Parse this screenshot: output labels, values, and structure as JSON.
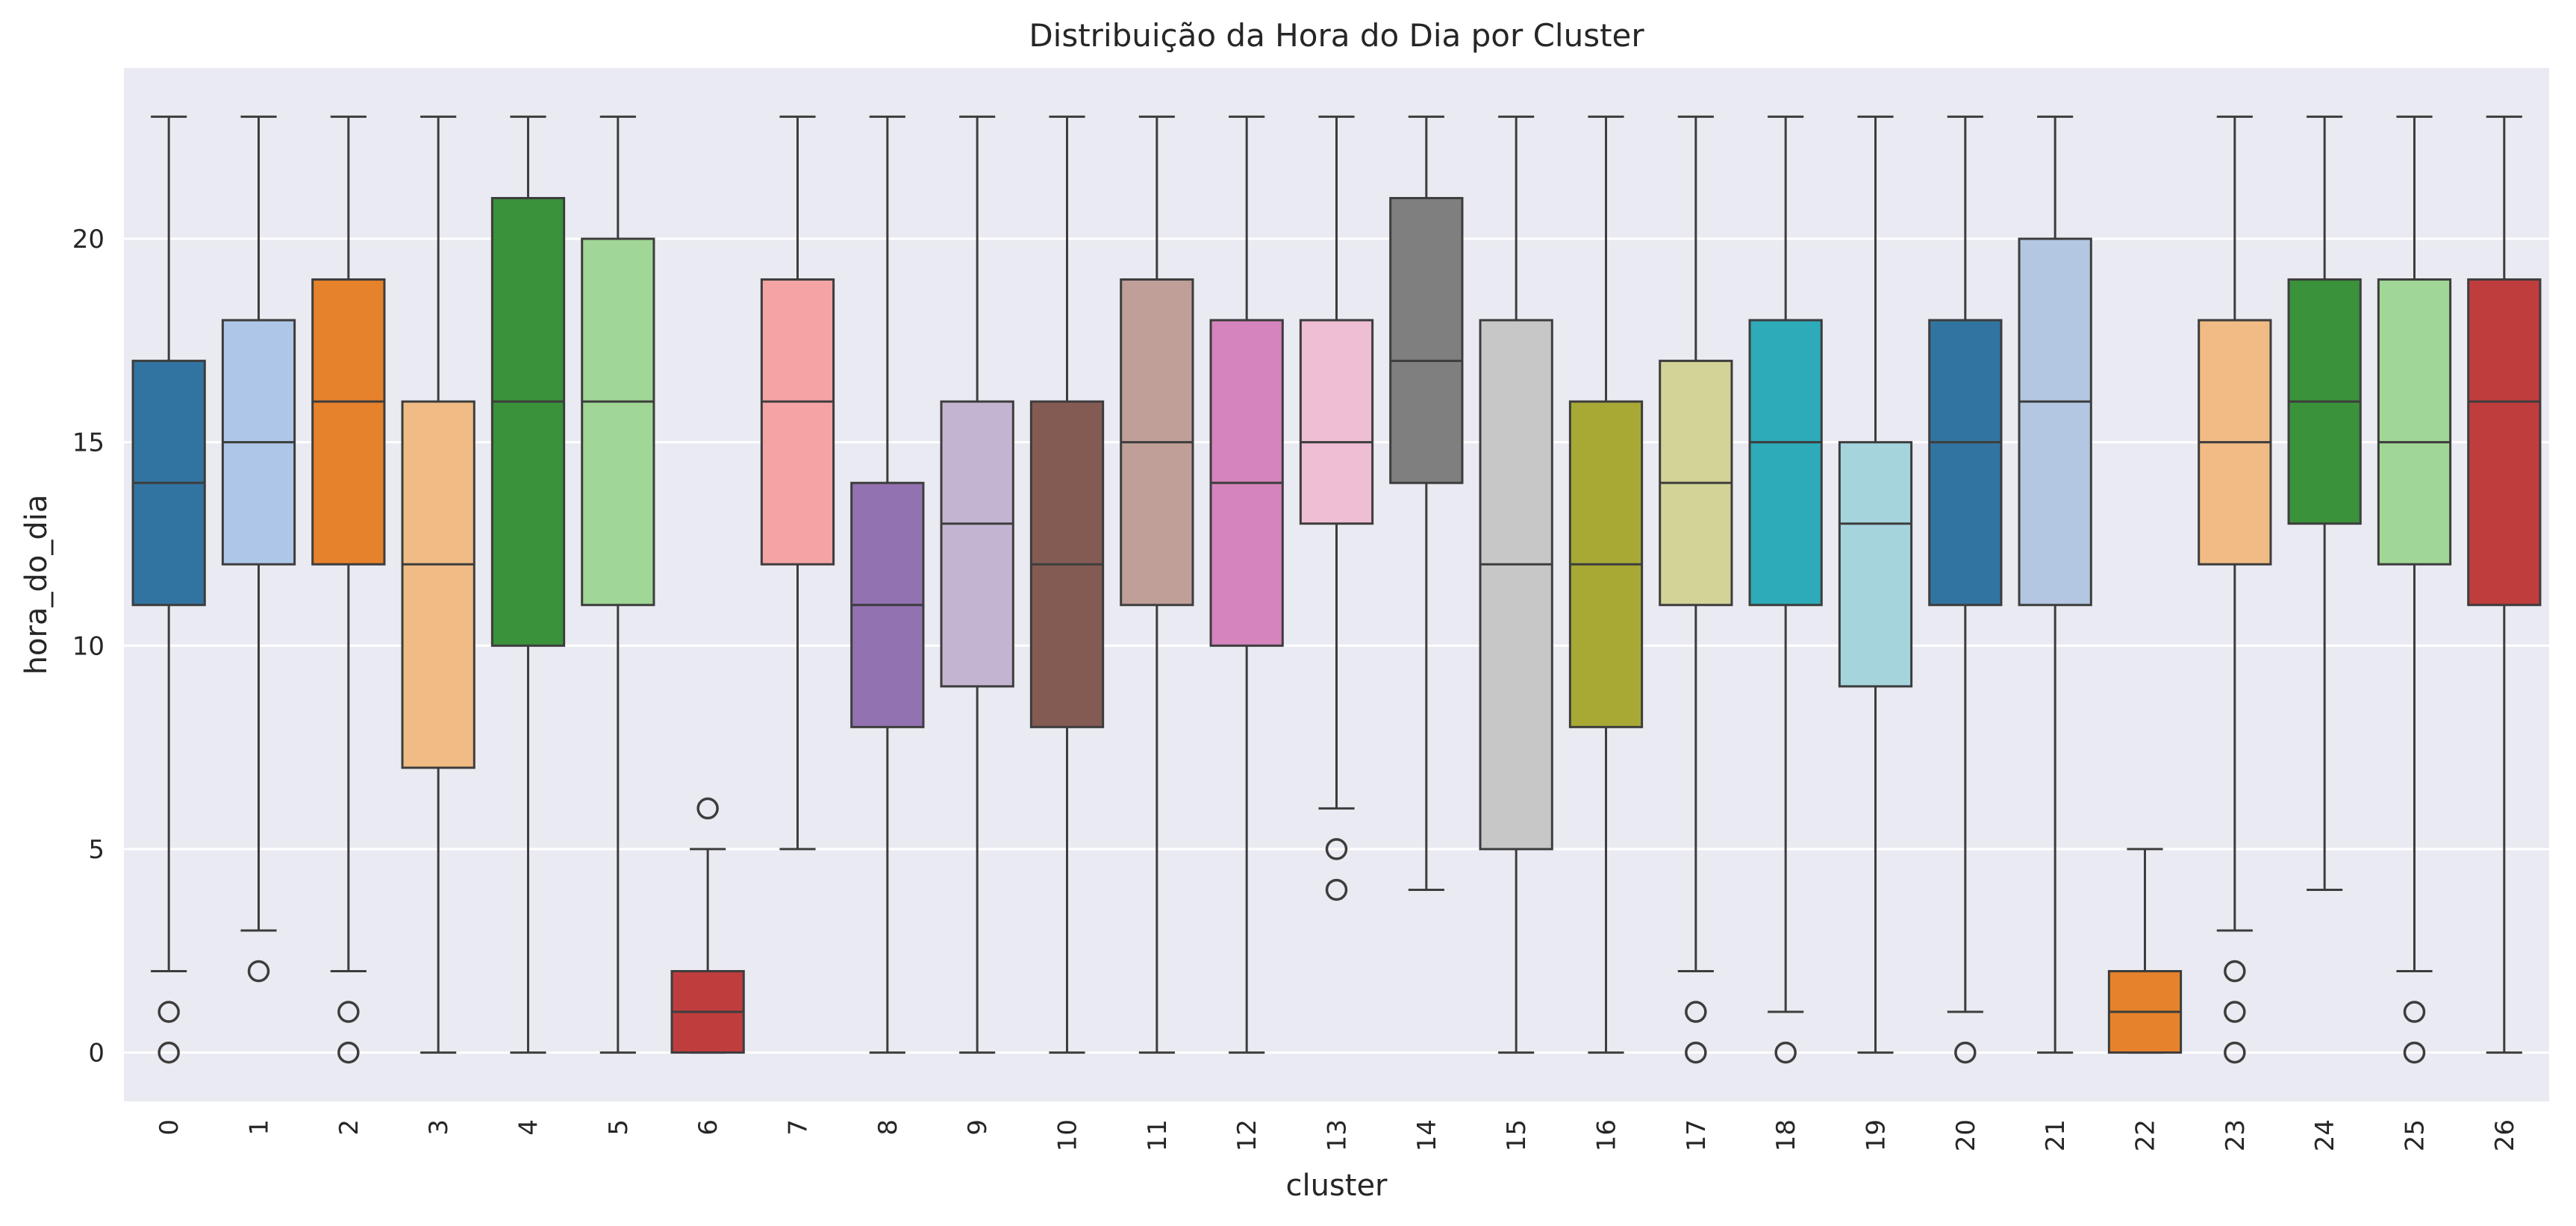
{
  "chart_data": {
    "type": "boxplot",
    "title": "Distribuição da Hora do Dia por Cluster",
    "xlabel": "cluster",
    "ylabel": "hora_do_dia",
    "ylim": [
      -1.2,
      24.2
    ],
    "yticks": [
      0,
      5,
      10,
      15,
      20
    ],
    "grid": true,
    "background_color": "#eaeaf2",
    "categories": [
      "0",
      "1",
      "2",
      "3",
      "4",
      "5",
      "6",
      "7",
      "8",
      "9",
      "10",
      "11",
      "12",
      "13",
      "14",
      "15",
      "16",
      "17",
      "18",
      "19",
      "20",
      "21",
      "22",
      "23",
      "24",
      "25",
      "26"
    ],
    "boxes": [
      {
        "cluster": "0",
        "color": "#3274a1",
        "whisker_low": 2,
        "q1": 11,
        "median": 14,
        "q3": 17,
        "whisker_high": 23,
        "outliers": [
          0,
          1
        ]
      },
      {
        "cluster": "1",
        "color": "#aec7e8",
        "whisker_low": 3,
        "q1": 12,
        "median": 15,
        "q3": 18,
        "whisker_high": 23,
        "outliers": [
          2
        ]
      },
      {
        "cluster": "2",
        "color": "#e6822b",
        "whisker_low": 2,
        "q1": 12,
        "median": 16,
        "q3": 19,
        "whisker_high": 23,
        "outliers": [
          0,
          1
        ]
      },
      {
        "cluster": "3",
        "color": "#f0bb85",
        "whisker_low": 0,
        "q1": 7,
        "median": 12,
        "q3": 16,
        "whisker_high": 23,
        "outliers": []
      },
      {
        "cluster": "4",
        "color": "#3a923a",
        "whisker_low": 0,
        "q1": 10,
        "median": 16,
        "q3": 21,
        "whisker_high": 23,
        "outliers": []
      },
      {
        "cluster": "5",
        "color": "#a0d696",
        "whisker_low": 0,
        "q1": 11,
        "median": 16,
        "q3": 20,
        "whisker_high": 23,
        "outliers": []
      },
      {
        "cluster": "6",
        "color": "#c03d3e",
        "whisker_low": 0,
        "q1": 0,
        "median": 1,
        "q3": 2,
        "whisker_high": 5,
        "outliers": [
          6
        ]
      },
      {
        "cluster": "7",
        "color": "#f4a4a4",
        "whisker_low": 5,
        "q1": 12,
        "median": 16,
        "q3": 19,
        "whisker_high": 23,
        "outliers": []
      },
      {
        "cluster": "8",
        "color": "#9372b2",
        "whisker_low": 0,
        "q1": 8,
        "median": 11,
        "q3": 14,
        "whisker_high": 23,
        "outliers": []
      },
      {
        "cluster": "9",
        "color": "#c3b5d2",
        "whisker_low": 0,
        "q1": 9,
        "median": 13,
        "q3": 16,
        "whisker_high": 23,
        "outliers": []
      },
      {
        "cluster": "10",
        "color": "#845b53",
        "whisker_low": 0,
        "q1": 8,
        "median": 12,
        "q3": 16,
        "whisker_high": 23,
        "outliers": []
      },
      {
        "cluster": "11",
        "color": "#bf9f98",
        "whisker_low": 0,
        "q1": 11,
        "median": 15,
        "q3": 19,
        "whisker_high": 23,
        "outliers": []
      },
      {
        "cluster": "12",
        "color": "#d684bd",
        "whisker_low": 0,
        "q1": 10,
        "median": 14,
        "q3": 18,
        "whisker_high": 23,
        "outliers": []
      },
      {
        "cluster": "13",
        "color": "#efbdd4",
        "whisker_low": 6,
        "q1": 13,
        "median": 15,
        "q3": 18,
        "whisker_high": 23,
        "outliers": [
          4,
          5
        ]
      },
      {
        "cluster": "14",
        "color": "#7f7f7f",
        "whisker_low": 4,
        "q1": 14,
        "median": 17,
        "q3": 21,
        "whisker_high": 23,
        "outliers": []
      },
      {
        "cluster": "15",
        "color": "#c7c7c7",
        "whisker_low": 0,
        "q1": 5,
        "median": 12,
        "q3": 18,
        "whisker_high": 23,
        "outliers": []
      },
      {
        "cluster": "16",
        "color": "#a8a935",
        "whisker_low": 0,
        "q1": 8,
        "median": 12,
        "q3": 16,
        "whisker_high": 23,
        "outliers": []
      },
      {
        "cluster": "17",
        "color": "#d2d396",
        "whisker_low": 2,
        "q1": 11,
        "median": 14,
        "q3": 17,
        "whisker_high": 23,
        "outliers": [
          0,
          1
        ]
      },
      {
        "cluster": "18",
        "color": "#2eabb8",
        "whisker_low": 1,
        "q1": 11,
        "median": 15,
        "q3": 18,
        "whisker_high": 23,
        "outliers": [
          0
        ]
      },
      {
        "cluster": "19",
        "color": "#a5d4dd",
        "whisker_low": 0,
        "q1": 9,
        "median": 13,
        "q3": 15,
        "whisker_high": 23,
        "outliers": []
      },
      {
        "cluster": "20",
        "color": "#3274a1",
        "whisker_low": 1,
        "q1": 11,
        "median": 15,
        "q3": 18,
        "whisker_high": 23,
        "outliers": [
          0
        ]
      },
      {
        "cluster": "21",
        "color": "#b3c7e2",
        "whisker_low": 0,
        "q1": 11,
        "median": 16,
        "q3": 20,
        "whisker_high": 23,
        "outliers": []
      },
      {
        "cluster": "22",
        "color": "#e6822b",
        "whisker_low": 0,
        "q1": 0,
        "median": 1,
        "q3": 2,
        "whisker_high": 5,
        "outliers": []
      },
      {
        "cluster": "23",
        "color": "#f0bb85",
        "whisker_low": 3,
        "q1": 12,
        "median": 15,
        "q3": 18,
        "whisker_high": 23,
        "outliers": [
          0,
          1,
          2
        ]
      },
      {
        "cluster": "24",
        "color": "#3a923a",
        "whisker_low": 4,
        "q1": 13,
        "median": 16,
        "q3": 19,
        "whisker_high": 23,
        "outliers": []
      },
      {
        "cluster": "25",
        "color": "#a0d696",
        "whisker_low": 2,
        "q1": 12,
        "median": 15,
        "q3": 19,
        "whisker_high": 23,
        "outliers": [
          0,
          1
        ]
      },
      {
        "cluster": "26",
        "color": "#c03d3e",
        "whisker_low": 0,
        "q1": 11,
        "median": 16,
        "q3": 19,
        "whisker_high": 23,
        "outliers": []
      }
    ]
  }
}
